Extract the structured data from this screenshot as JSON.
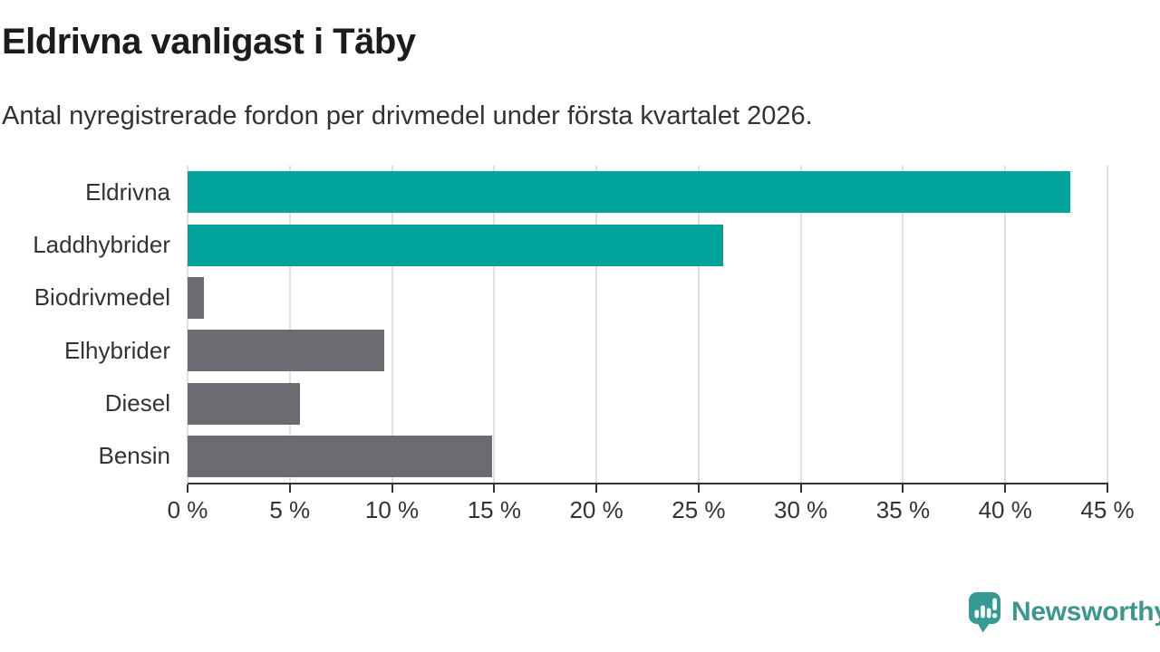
{
  "header": {
    "title": "Eldrivna vanligast i Täby",
    "subtitle": "Antal nyregistrerade fordon per drivmedel under första kvartalet 2026."
  },
  "chart_data": {
    "type": "bar",
    "orientation": "horizontal",
    "title": "Eldrivna vanligast i Täby",
    "subtitle": "Antal nyregistrerade fordon per drivmedel under första kvartalet 2026.",
    "categories": [
      "Eldrivna",
      "Laddhybrider",
      "Biodrivmedel",
      "Elhybrider",
      "Diesel",
      "Bensin"
    ],
    "values": [
      43.2,
      26.2,
      0.8,
      9.6,
      5.5,
      14.9
    ],
    "unit": "%",
    "bar_colors": [
      "#00a39a",
      "#00a39a",
      "#6c6b71",
      "#6c6b71",
      "#6c6b71",
      "#6c6b71"
    ],
    "xlim": [
      0,
      45
    ],
    "x_ticks": [
      0,
      5,
      10,
      15,
      20,
      25,
      30,
      35,
      40,
      45
    ],
    "x_tick_labels": [
      "0 %",
      "5 %",
      "10 %",
      "15 %",
      "20 %",
      "25 %",
      "30 %",
      "35 %",
      "40 %",
      "45 %"
    ],
    "xlabel": "",
    "ylabel": "",
    "grid": "vertical",
    "legend": "none"
  },
  "colors": {
    "accent_teal": "#00a39a",
    "neutral_gray": "#6c6b71",
    "grid": "#e0e0e0",
    "axis": "#333333",
    "text": "#333333",
    "title_text": "#1c1c1c",
    "brand_teal": "#3d978e",
    "logo_teal": "#359a93"
  },
  "footer": {
    "brand": "Newsworthy",
    "logo_icon": "bar-chart-speech-bubble-icon"
  }
}
